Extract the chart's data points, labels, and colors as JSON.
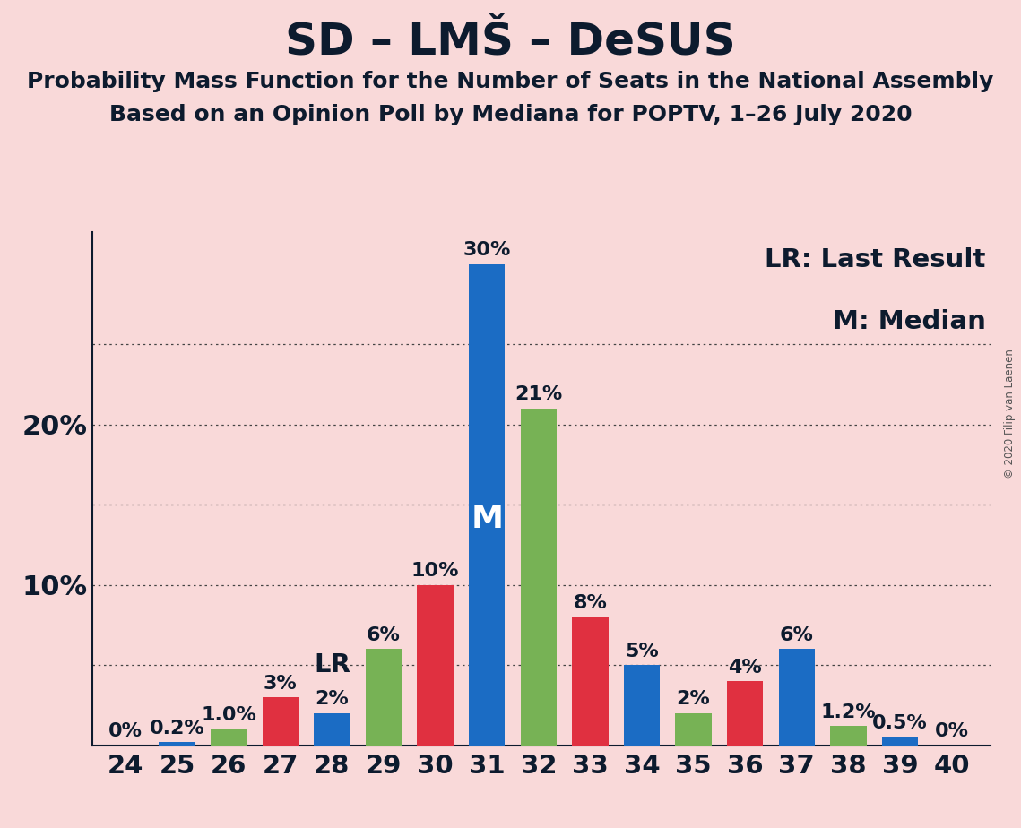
{
  "title": "SD – LMŠ – DeSUS",
  "subtitle1": "Probability Mass Function for the Number of Seats in the National Assembly",
  "subtitle2": "Based on an Opinion Poll by Mediana for POPTV, 1–26 July 2020",
  "copyright": "© 2020 Filip van Laenen",
  "legend1": "LR: Last Result",
  "legend2": "M: Median",
  "background_color": "#f9d9d9",
  "bar_blue": "#1b6cc4",
  "bar_green": "#77b255",
  "bar_red": "#e03040",
  "seats": [
    24,
    25,
    26,
    27,
    28,
    29,
    30,
    31,
    32,
    33,
    34,
    35,
    36,
    37,
    38,
    39,
    40
  ],
  "values": [
    0.0,
    0.2,
    1.0,
    3.0,
    2.0,
    6.0,
    10.0,
    30.0,
    21.0,
    8.0,
    5.0,
    2.0,
    4.0,
    6.0,
    1.2,
    0.5,
    0.0
  ],
  "colors": [
    "blue",
    "blue",
    "green",
    "red",
    "blue",
    "green",
    "red",
    "blue",
    "green",
    "red",
    "blue",
    "green",
    "red",
    "blue",
    "green",
    "blue",
    "red"
  ],
  "labels": [
    "0%",
    "0.2%",
    "1.0%",
    "3%",
    "2%",
    "6%",
    "10%",
    "30%",
    "21%",
    "8%",
    "5%",
    "2%",
    "4%",
    "6%",
    "1.2%",
    "0.5%",
    "0%"
  ],
  "LR_seat": 28,
  "LR_idx": 4,
  "M_seat": 31,
  "M_idx": 7,
  "ylim": [
    0,
    32
  ],
  "bar_width": 0.7,
  "title_fontsize": 36,
  "subtitle_fontsize": 18,
  "tick_fontsize": 21,
  "annot_fontsize": 16,
  "legend_fontsize": 21
}
